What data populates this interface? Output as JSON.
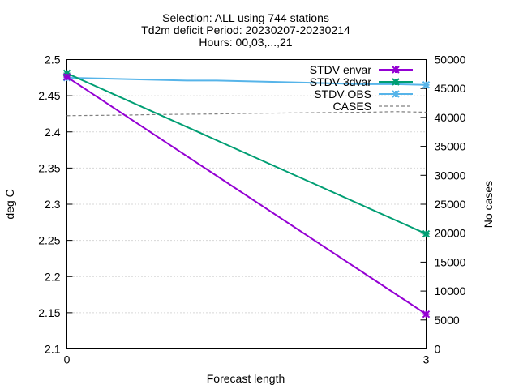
{
  "chart_data": {
    "type": "line",
    "title_lines": [
      "Selection: ALL using   744 stations",
      "Td2m deficit   Period: 20230207-20230214",
      "Hours: 00,03,...,21"
    ],
    "xlabel": "Forecast length",
    "ylabel": "deg C",
    "y2label": "No cases",
    "x_ticks": [
      "0",
      "3"
    ],
    "xlim": [
      0,
      3
    ],
    "ylim": [
      2.1,
      2.5
    ],
    "y_ticks": [
      "2.1",
      "2.15",
      "2.2",
      "2.25",
      "2.3",
      "2.35",
      "2.4",
      "2.45",
      "2.5"
    ],
    "y2lim": [
      0,
      50000
    ],
    "y2_ticks": [
      "0",
      "5000",
      "10000",
      "15000",
      "20000",
      "25000",
      "30000",
      "35000",
      "40000",
      "45000",
      "50000"
    ],
    "grid": "horizontal dotted",
    "legend_position": "top-right",
    "series": [
      {
        "name": "STDV envar",
        "axis": "y",
        "color": "#9400d3",
        "marker": "x",
        "dashed": false,
        "x": [
          0,
          3
        ],
        "y": [
          2.476,
          2.148
        ]
      },
      {
        "name": "STDV 3dvar",
        "axis": "y",
        "color": "#009e73",
        "marker": "x",
        "dashed": false,
        "x": [
          0,
          3
        ],
        "y": [
          2.481,
          2.259
        ]
      },
      {
        "name": "STDV OBS",
        "axis": "y",
        "color": "#56b4e9",
        "marker": "x",
        "dashed": false,
        "x": [
          0,
          0.25,
          0.5,
          0.75,
          1,
          1.25,
          1.5,
          1.75,
          2,
          2.25,
          2.5,
          2.75,
          3
        ],
        "y": [
          2.475,
          2.474,
          2.473,
          2.472,
          2.471,
          2.471,
          2.47,
          2.469,
          2.468,
          2.467,
          2.466,
          2.466,
          2.465
        ]
      },
      {
        "name": "CASES",
        "axis": "y2",
        "color": "#808080",
        "marker": "none",
        "dashed": true,
        "x": [
          0,
          0.25,
          0.5,
          0.75,
          1,
          1.25,
          1.5,
          1.75,
          2,
          2.25,
          2.5,
          2.75,
          3
        ],
        "y": [
          40300,
          40350,
          40400,
          40500,
          40550,
          40600,
          40700,
          40750,
          40800,
          40850,
          40900,
          41000,
          40900
        ]
      }
    ]
  }
}
